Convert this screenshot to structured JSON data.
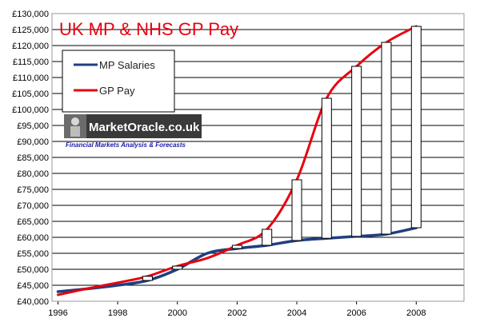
{
  "chart_data": {
    "type": "line",
    "title": "UK MP & NHS GP Pay",
    "xlabel": "",
    "ylabel": "",
    "x_ticks": [
      "1996",
      "1998",
      "2000",
      "2002",
      "2004",
      "2006",
      "2008"
    ],
    "y_ticks": [
      "£40,000",
      "£45,000",
      "£50,000",
      "£55,000",
      "£60,000",
      "£65,000",
      "£70,000",
      "£75,000",
      "£80,000",
      "£85,000",
      "£90,000",
      "£95,000",
      "£100,000",
      "£105,000",
      "£110,000",
      "£115,000",
      "£120,000",
      "£125,000",
      "£130,000"
    ],
    "xlim": [
      1995.8,
      2009.6
    ],
    "ylim": [
      40000,
      130000
    ],
    "grid": "horizontal",
    "legend_position": "top-left",
    "series": [
      {
        "name": "MP Salaries",
        "color": "#1f3f7f",
        "x": [
          1996,
          1997,
          1998,
          1999,
          2000,
          2001,
          2002,
          2003,
          2004,
          2005,
          2006,
          2007,
          2008
        ],
        "values": [
          43000,
          43900,
          45000,
          46500,
          50000,
          55000,
          56500,
          57500,
          59000,
          59700,
          60300,
          61000,
          63000
        ]
      },
      {
        "name": "GP Pay",
        "color": "#e8000f",
        "x": [
          1996,
          1997,
          1998,
          1999,
          2000,
          2001,
          2002,
          2003,
          2004,
          2005,
          2006,
          2007,
          2008
        ],
        "values": [
          42000,
          44000,
          45800,
          47800,
          51000,
          53500,
          57500,
          62500,
          78000,
          103500,
          113500,
          121000,
          126000
        ]
      }
    ],
    "gap_boxes": {
      "x": [
        1999,
        2000,
        2002,
        2003,
        2004,
        2005,
        2006,
        2007,
        2008
      ],
      "low": [
        46500,
        50000,
        56500,
        57500,
        59000,
        59700,
        60300,
        61000,
        63000
      ],
      "high": [
        47800,
        51000,
        57500,
        62500,
        78000,
        103500,
        113500,
        121000,
        126000
      ]
    }
  },
  "watermark": {
    "brand": "MarketOracle.co.uk",
    "tagline": "Financial Markets Analysis & Forecasts"
  }
}
